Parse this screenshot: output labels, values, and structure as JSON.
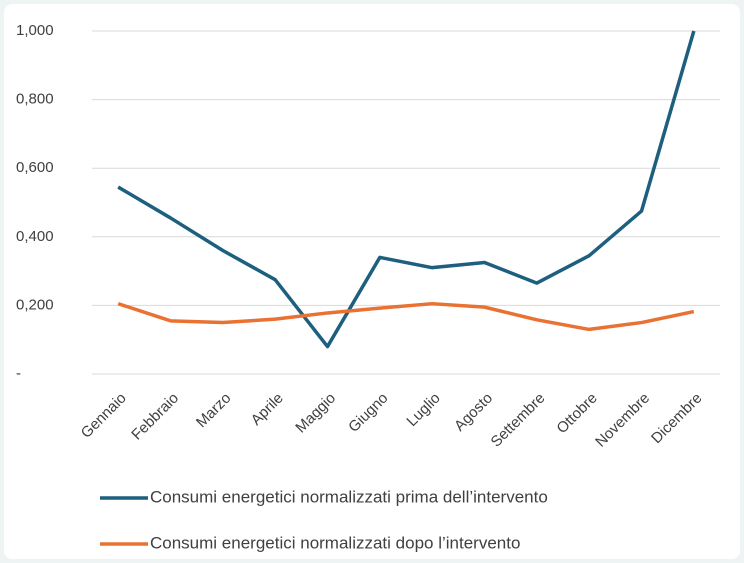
{
  "chart_data": {
    "type": "line",
    "categories": [
      "Gennaio",
      "Febbraio",
      "Marzo",
      "Aprile",
      "Maggio",
      "Giugno",
      "Luglio",
      "Agosto",
      "Settembre",
      "Ottobre",
      "Novembre",
      "Dicembre"
    ],
    "series": [
      {
        "name": "Consumi energetici normalizzati prima dell’intervento",
        "color": "#1d5f7e",
        "values": [
          0.545,
          0.455,
          0.36,
          0.275,
          0.08,
          0.34,
          0.31,
          0.325,
          0.265,
          0.345,
          0.475,
          1.0
        ]
      },
      {
        "name": "Consumi energetici normalizzati dopo l’intervento",
        "color": "#e97132",
        "values": [
          0.205,
          0.155,
          0.15,
          0.16,
          0.178,
          0.192,
          0.205,
          0.195,
          0.158,
          0.13,
          0.15,
          0.182
        ]
      }
    ],
    "ylim": [
      0,
      1
    ],
    "yticks": [
      {
        "value": 0,
        "label": "-"
      },
      {
        "value": 0.2,
        "label": "0,200"
      },
      {
        "value": 0.4,
        "label": "0,400"
      },
      {
        "value": 0.6,
        "label": "0,600"
      },
      {
        "value": 0.8,
        "label": "0,800"
      },
      {
        "value": 1,
        "label": "1,000"
      }
    ],
    "grid": true
  }
}
